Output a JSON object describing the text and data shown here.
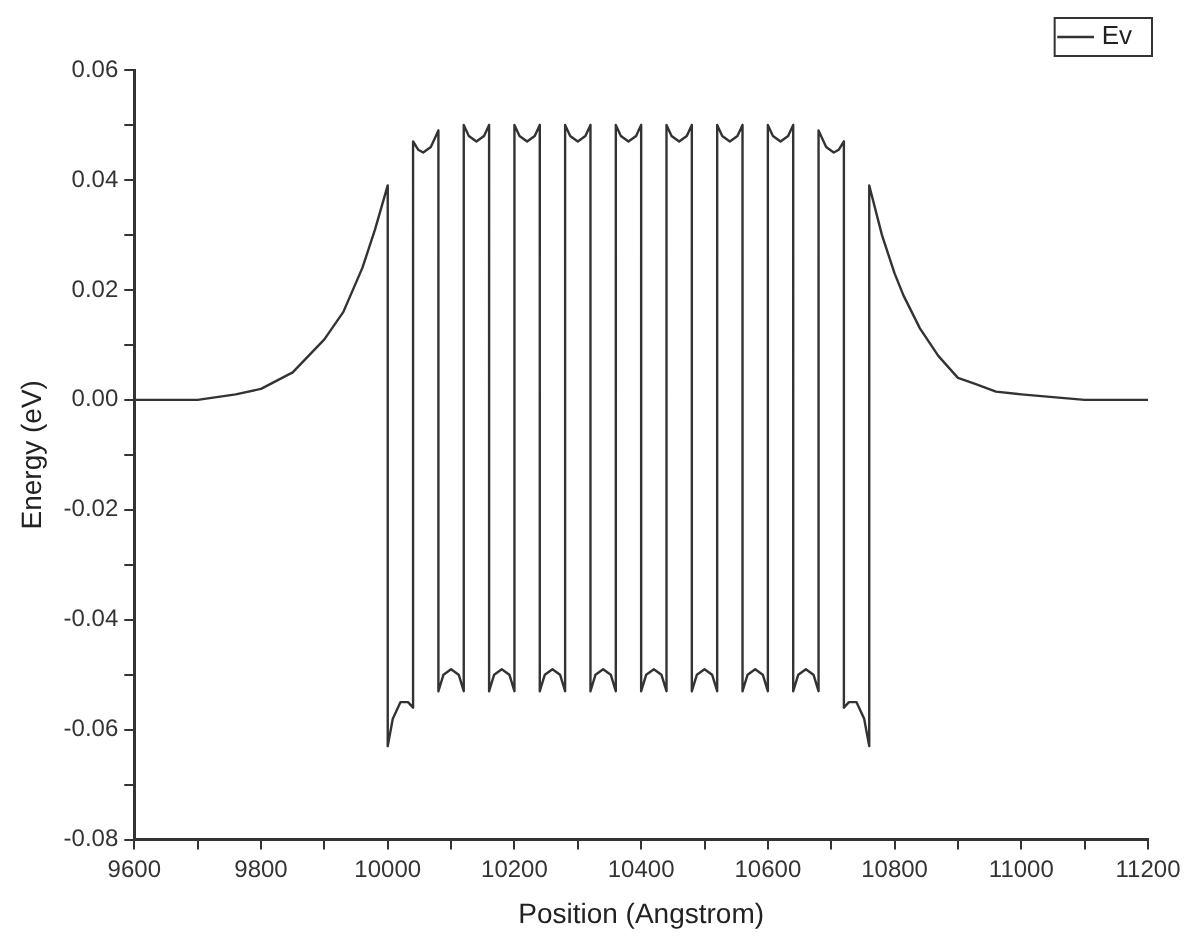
{
  "chart_data": {
    "type": "line",
    "xlabel": "Position (Angstrom)",
    "ylabel": "Energy (eV)",
    "legend": "top right",
    "grid": false,
    "marker": "none",
    "line_style": "solid",
    "xlim": [
      9600,
      11200
    ],
    "xticks": [
      9600,
      {
        "value": 9700,
        "label": null
      },
      9800,
      {
        "value": 9900,
        "label": null
      },
      10000,
      {
        "value": 10100,
        "label": null
      },
      10200,
      {
        "value": 10300,
        "label": null
      },
      10400,
      {
        "value": 10500,
        "label": null
      },
      10600,
      {
        "value": 10700,
        "label": null
      },
      10800,
      {
        "value": 10900,
        "label": null
      },
      11000,
      {
        "value": 11100,
        "label": null
      },
      11200
    ],
    "ylim": [
      -0.08,
      0.06
    ],
    "yticks": [
      {
        "value": -0.08,
        "label": "-0.08"
      },
      {
        "value": -0.07,
        "label": null
      },
      {
        "value": -0.06,
        "label": "-0.06"
      },
      {
        "value": -0.05,
        "label": null
      },
      {
        "value": -0.04,
        "label": "-0.04"
      },
      {
        "value": -0.03,
        "label": null
      },
      {
        "value": -0.02,
        "label": "-0.02"
      },
      {
        "value": -0.01,
        "label": null
      },
      {
        "value": 0,
        "label": "0.00"
      },
      {
        "value": 0.01,
        "label": null
      },
      {
        "value": 0.02,
        "label": "0.02"
      },
      {
        "value": 0.03,
        "label": null
      },
      {
        "value": 0.04,
        "label": "0.04"
      },
      {
        "value": 0.05,
        "label": null
      },
      {
        "value": 0.06,
        "label": "0.06"
      }
    ],
    "series": [
      {
        "name": "Ev",
        "color": "#333333",
        "x": [
          9600,
          9700,
          9760,
          9800,
          9850,
          9900,
          9930,
          9960,
          9980,
          10000,
          10000,
          10008,
          10020,
          10032,
          10040,
          10040,
          10048,
          10056,
          10068,
          10080,
          10080,
          10088,
          10100,
          10112,
          10120,
          10120,
          10128,
          10140,
          10152,
          10160,
          10160,
          10168,
          10180,
          10192,
          10200,
          10200,
          10208,
          10220,
          10232,
          10240,
          10240,
          10248,
          10260,
          10272,
          10280,
          10280,
          10288,
          10300,
          10312,
          10320,
          10320,
          10328,
          10340,
          10352,
          10360,
          10360,
          10368,
          10380,
          10392,
          10400,
          10400,
          10408,
          10420,
          10432,
          10440,
          10440,
          10448,
          10460,
          10472,
          10480,
          10480,
          10488,
          10500,
          10512,
          10520,
          10520,
          10528,
          10540,
          10552,
          10560,
          10560,
          10568,
          10580,
          10592,
          10600,
          10600,
          10608,
          10620,
          10632,
          10640,
          10640,
          10648,
          10660,
          10672,
          10680,
          10680,
          10692,
          10704,
          10712,
          10720,
          10720,
          10728,
          10740,
          10752,
          10760,
          10760,
          10780,
          10800,
          10814,
          10840,
          10869,
          10900,
          10925,
          10960,
          11000,
          11100,
          11200
        ],
        "values": [
          0,
          0,
          0.001,
          0.002,
          0.005,
          0.011,
          0.016,
          0.024,
          0.031,
          0.039,
          -0.063,
          -0.058,
          -0.055,
          -0.055,
          -0.056,
          0.047,
          0.0455,
          0.045,
          0.046,
          0.049,
          -0.053,
          -0.05,
          -0.049,
          -0.05,
          -0.053,
          0.05,
          0.048,
          0.047,
          0.048,
          0.05,
          -0.053,
          -0.05,
          -0.049,
          -0.05,
          -0.053,
          0.05,
          0.048,
          0.047,
          0.048,
          0.05,
          -0.053,
          -0.05,
          -0.049,
          -0.05,
          -0.053,
          0.05,
          0.048,
          0.047,
          0.048,
          0.05,
          -0.053,
          -0.05,
          -0.049,
          -0.05,
          -0.053,
          0.05,
          0.048,
          0.047,
          0.048,
          0.05,
          -0.053,
          -0.05,
          -0.049,
          -0.05,
          -0.053,
          0.05,
          0.048,
          0.047,
          0.048,
          0.05,
          -0.053,
          -0.05,
          -0.049,
          -0.05,
          -0.053,
          0.05,
          0.048,
          0.047,
          0.048,
          0.05,
          -0.053,
          -0.05,
          -0.049,
          -0.05,
          -0.053,
          0.05,
          0.048,
          0.047,
          0.048,
          0.05,
          -0.053,
          -0.05,
          -0.049,
          -0.05,
          -0.053,
          0.049,
          0.046,
          0.045,
          0.0455,
          0.047,
          -0.056,
          -0.055,
          -0.055,
          -0.058,
          -0.063,
          0.039,
          0.03,
          0.023,
          0.019,
          0.013,
          0.008,
          0.004,
          0.003,
          0.0015,
          0.001,
          0,
          0
        ]
      }
    ]
  }
}
